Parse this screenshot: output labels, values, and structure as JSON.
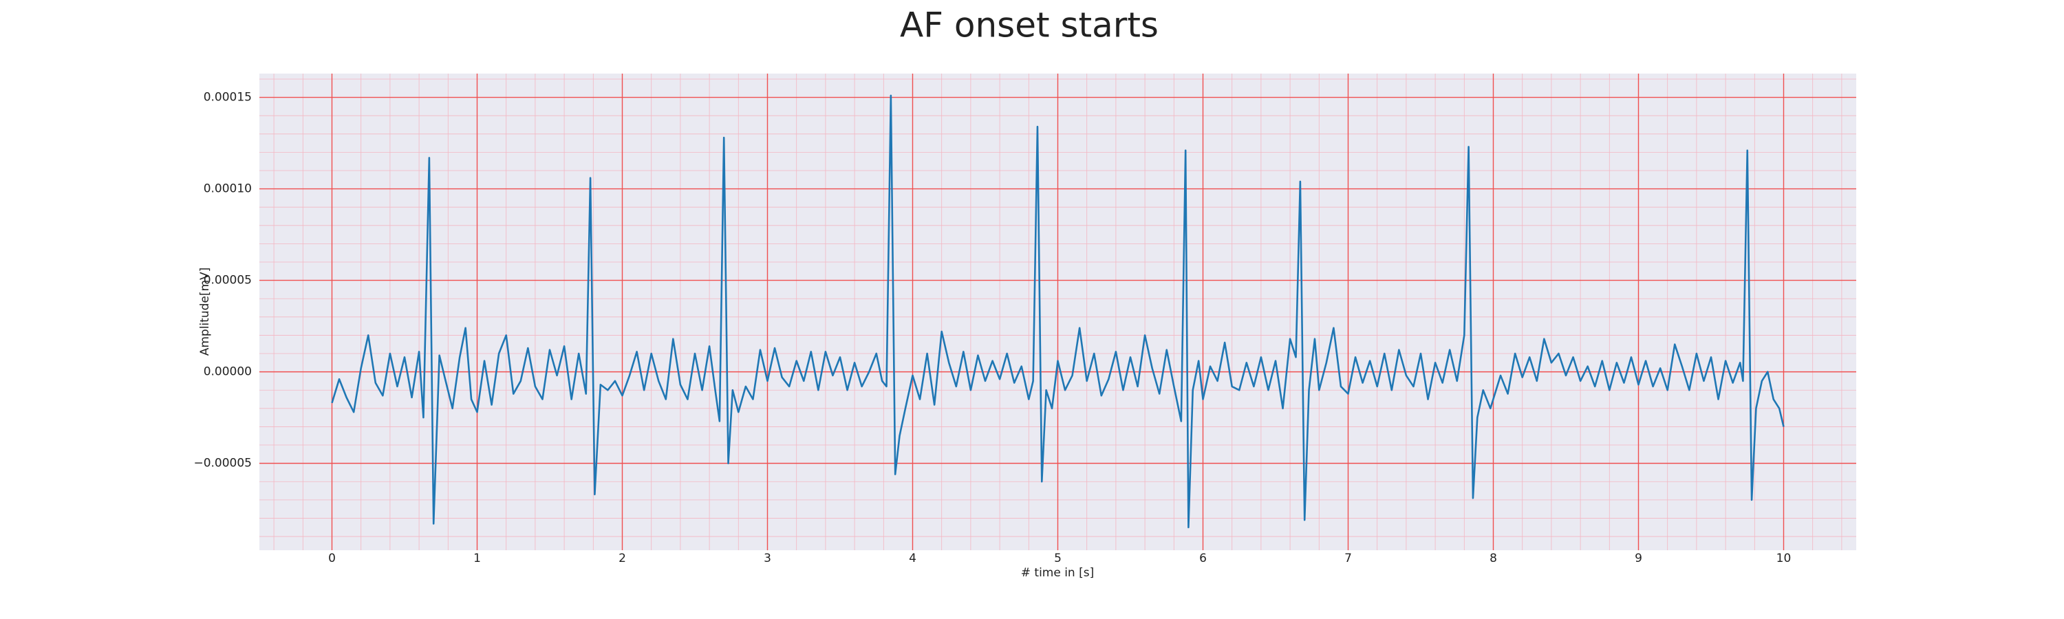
{
  "chart_data": {
    "type": "line",
    "title": "AF onset starts",
    "x_label": "# time in [s]",
    "y_label": "Amplitude[mV]",
    "color": "#1f77b4",
    "grid": true,
    "minor_grid": true,
    "xlim": [
      -0.5,
      10.5
    ],
    "ylim": [
      -9.75e-05,
      0.000163
    ],
    "xticks": [
      0,
      1,
      2,
      3,
      4,
      5,
      6,
      7,
      8,
      9,
      10
    ],
    "yticks": [
      {
        "value": -5e-05,
        "label": "−0.00005"
      },
      {
        "value": 0,
        "label": "0.00000"
      },
      {
        "value": 5e-05,
        "label": "0.00005"
      },
      {
        "value": 0.0001,
        "label": "0.00010"
      },
      {
        "value": 0.00015,
        "label": "0.00015"
      }
    ],
    "x": [
      0,
      0.05,
      0.1,
      0.15,
      0.2,
      0.25,
      0.3,
      0.35,
      0.4,
      0.45,
      0.5,
      0.55,
      0.6,
      0.63,
      0.67,
      0.7,
      0.74,
      0.78,
      0.83,
      0.88,
      0.92,
      0.96,
      1.0,
      1.05,
      1.1,
      1.15,
      1.2,
      1.25,
      1.3,
      1.35,
      1.4,
      1.45,
      1.5,
      1.55,
      1.6,
      1.65,
      1.7,
      1.75,
      1.78,
      1.81,
      1.85,
      1.9,
      1.95,
      2.0,
      2.05,
      2.1,
      2.15,
      2.2,
      2.25,
      2.3,
      2.35,
      2.4,
      2.45,
      2.5,
      2.55,
      2.6,
      2.64,
      2.67,
      2.7,
      2.73,
      2.76,
      2.8,
      2.85,
      2.9,
      2.95,
      3.0,
      3.05,
      3.1,
      3.15,
      3.2,
      3.25,
      3.3,
      3.35,
      3.4,
      3.45,
      3.5,
      3.55,
      3.6,
      3.65,
      3.7,
      3.75,
      3.79,
      3.82,
      3.85,
      3.88,
      3.91,
      3.95,
      4.0,
      4.05,
      4.1,
      4.15,
      4.2,
      4.25,
      4.3,
      4.35,
      4.4,
      4.45,
      4.5,
      4.55,
      4.6,
      4.65,
      4.7,
      4.75,
      4.8,
      4.83,
      4.86,
      4.89,
      4.92,
      4.96,
      5.0,
      5.05,
      5.1,
      5.15,
      5.2,
      5.25,
      5.3,
      5.35,
      5.4,
      5.45,
      5.5,
      5.55,
      5.6,
      5.65,
      5.7,
      5.75,
      5.8,
      5.85,
      5.88,
      5.9,
      5.93,
      5.97,
      6.0,
      6.05,
      6.1,
      6.15,
      6.2,
      6.25,
      6.3,
      6.35,
      6.4,
      6.45,
      6.5,
      6.55,
      6.6,
      6.64,
      6.67,
      6.7,
      6.73,
      6.77,
      6.8,
      6.85,
      6.9,
      6.95,
      7.0,
      7.05,
      7.1,
      7.15,
      7.2,
      7.25,
      7.3,
      7.35,
      7.4,
      7.45,
      7.5,
      7.55,
      7.6,
      7.65,
      7.7,
      7.75,
      7.8,
      7.83,
      7.86,
      7.89,
      7.93,
      7.98,
      8.05,
      8.1,
      8.15,
      8.2,
      8.25,
      8.3,
      8.35,
      8.4,
      8.45,
      8.5,
      8.55,
      8.6,
      8.65,
      8.7,
      8.75,
      8.8,
      8.85,
      8.9,
      8.95,
      9.0,
      9.05,
      9.1,
      9.15,
      9.2,
      9.25,
      9.3,
      9.35,
      9.4,
      9.45,
      9.5,
      9.55,
      9.6,
      9.65,
      9.7,
      9.72,
      9.75,
      9.78,
      9.81,
      9.85,
      9.89,
      9.93,
      9.97,
      10.0
    ],
    "values": [
      -1.7e-05,
      -4e-06,
      -1.4e-05,
      -2.2e-05,
      2e-06,
      2e-05,
      -6e-06,
      -1.3e-05,
      1e-05,
      -8e-06,
      8e-06,
      -1.4e-05,
      1.1e-05,
      -2.5e-05,
      0.000117,
      -8.3e-05,
      9e-06,
      -4e-06,
      -2e-05,
      8e-06,
      2.4e-05,
      -1.5e-05,
      -2.2e-05,
      6e-06,
      -1.8e-05,
      1e-05,
      2e-05,
      -1.2e-05,
      -5e-06,
      1.3e-05,
      -8e-06,
      -1.5e-05,
      1.2e-05,
      -2e-06,
      1.4e-05,
      -1.5e-05,
      1e-05,
      -1.2e-05,
      0.000106,
      -6.7e-05,
      -7e-06,
      -1e-05,
      -5e-06,
      -1.3e-05,
      -2e-06,
      1.1e-05,
      -1e-05,
      1e-05,
      -5e-06,
      -1.5e-05,
      1.8e-05,
      -7e-06,
      -1.5e-05,
      1e-05,
      -1e-05,
      1.4e-05,
      -1e-05,
      -2.7e-05,
      0.000128,
      -5e-05,
      -1e-05,
      -2.2e-05,
      -8e-06,
      -1.5e-05,
      1.2e-05,
      -5e-06,
      1.3e-05,
      -3e-06,
      -8e-06,
      6e-06,
      -5e-06,
      1.1e-05,
      -1e-05,
      1.1e-05,
      -2e-06,
      8e-06,
      -1e-05,
      5e-06,
      -8e-06,
      0,
      1e-05,
      -5e-06,
      -8e-06,
      0.000151,
      -5.6e-05,
      -3.5e-05,
      -2e-05,
      -2e-06,
      -1.5e-05,
      1e-05,
      -1.8e-05,
      2.2e-05,
      5e-06,
      -8e-06,
      1.1e-05,
      -1e-05,
      9e-06,
      -5e-06,
      6e-06,
      -4e-06,
      1e-05,
      -6e-06,
      3e-06,
      -1.5e-05,
      -5e-06,
      0.000134,
      -6e-05,
      -1e-05,
      -2e-05,
      6e-06,
      -1e-05,
      -2e-06,
      2.4e-05,
      -5e-06,
      1e-05,
      -1.3e-05,
      -4e-06,
      1.1e-05,
      -1e-05,
      8e-06,
      -8e-06,
      2e-05,
      2e-06,
      -1.2e-05,
      1.2e-05,
      -8e-06,
      -2.7e-05,
      0.000121,
      -8.5e-05,
      -1e-05,
      6e-06,
      -1.5e-05,
      3e-06,
      -5e-06,
      1.6e-05,
      -8e-06,
      -1e-05,
      5e-06,
      -8e-06,
      8e-06,
      -1e-05,
      6e-06,
      -2e-05,
      1.8e-05,
      8e-06,
      0.000104,
      -8.1e-05,
      -1e-05,
      1.8e-05,
      -1e-05,
      5e-06,
      2.4e-05,
      -8e-06,
      -1.2e-05,
      8e-06,
      -6e-06,
      6e-06,
      -8e-06,
      1e-05,
      -1e-05,
      1.2e-05,
      -2e-06,
      -8e-06,
      1e-05,
      -1.5e-05,
      5e-06,
      -6e-06,
      1.2e-05,
      -5e-06,
      2e-05,
      0.000123,
      -6.9e-05,
      -2.5e-05,
      -1e-05,
      -2e-05,
      -2e-06,
      -1.2e-05,
      1e-05,
      -3e-06,
      8e-06,
      -5e-06,
      1.8e-05,
      5e-06,
      1e-05,
      -2e-06,
      8e-06,
      -5e-06,
      3e-06,
      -8e-06,
      6e-06,
      -1e-05,
      5e-06,
      -6e-06,
      8e-06,
      -7e-06,
      6e-06,
      -8e-06,
      2e-06,
      -1e-05,
      1.5e-05,
      3e-06,
      -1e-05,
      1e-05,
      -5e-06,
      8e-06,
      -1.5e-05,
      6e-06,
      -6e-06,
      5e-06,
      -5e-06,
      0.000121,
      -7e-05,
      -2e-05,
      -5e-06,
      0,
      -1.5e-05,
      -2e-05,
      -3e-05
    ]
  }
}
